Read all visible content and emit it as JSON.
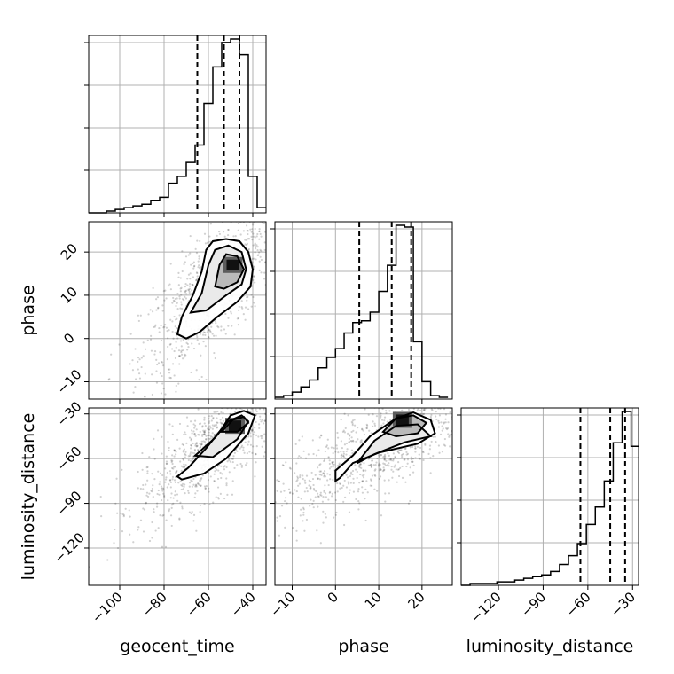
{
  "chart_data": {
    "type": "scatter",
    "kind": "corner-plot",
    "parameters": [
      "geocent_time",
      "phase",
      "luminosity_distance"
    ],
    "axis_labels": {
      "bottom": [
        "geocent_time",
        "phase",
        "luminosity_distance"
      ],
      "left": [
        "phase",
        "luminosity_distance"
      ]
    },
    "ranges": {
      "geocent_time": [
        -114,
        -34
      ],
      "phase": [
        -14,
        27
      ],
      "luminosity_distance": [
        -145,
        -26
      ]
    },
    "ticks": {
      "geocent_time": [
        -100,
        -80,
        -60,
        -40
      ],
      "phase": [
        -10,
        0,
        10,
        20
      ],
      "luminosity_distance": [
        -120,
        -90,
        -60,
        -30
      ]
    },
    "tick_labels": {
      "geocent_time": [
        "−100",
        "−80",
        "−60",
        "−40"
      ],
      "phase": [
        "−10",
        "0",
        "10",
        "20"
      ],
      "luminosity_distance": [
        "−120",
        "−90",
        "−60",
        "−30"
      ]
    },
    "quantiles": {
      "geocent_time": [
        -65,
        -53,
        -46
      ],
      "phase": [
        5.5,
        13,
        17.5
      ],
      "luminosity_distance": [
        -65,
        -45,
        -35
      ]
    },
    "histograms": {
      "geocent_time": {
        "bins": [
          -114,
          -110,
          -106,
          -102,
          -98,
          -94,
          -90,
          -86,
          -82,
          -78,
          -74,
          -70,
          -66,
          -62,
          -58,
          -54,
          -50,
          -46,
          -42,
          -38,
          -34
        ],
        "counts": [
          0,
          0,
          0.01,
          0.02,
          0.03,
          0.04,
          0.05,
          0.07,
          0.09,
          0.17,
          0.21,
          0.29,
          0.39,
          0.63,
          0.84,
          0.98,
          1.0,
          0.91,
          0.21,
          0.03
        ]
      },
      "phase": {
        "bins": [
          -14,
          -12,
          -10,
          -8,
          -6,
          -4,
          -2,
          0,
          2,
          4,
          6,
          8,
          10,
          12,
          14,
          16,
          18,
          20,
          22,
          24,
          26
        ],
        "counts": [
          0.01,
          0.02,
          0.04,
          0.07,
          0.11,
          0.18,
          0.24,
          0.29,
          0.38,
          0.44,
          0.45,
          0.5,
          0.62,
          0.77,
          1.0,
          0.99,
          0.33,
          0.1,
          0.02,
          0.01
        ]
      },
      "luminosity_distance": {
        "bins": [
          -145,
          -139,
          -133,
          -127,
          -121,
          -115,
          -109,
          -103,
          -97,
          -91,
          -85,
          -79,
          -73,
          -67,
          -61,
          -55,
          -49,
          -43,
          -37,
          -31,
          -26
        ],
        "counts": [
          0,
          0.01,
          0.01,
          0.01,
          0.02,
          0.02,
          0.03,
          0.04,
          0.05,
          0.06,
          0.08,
          0.12,
          0.17,
          0.24,
          0.35,
          0.45,
          0.6,
          0.82,
          1.0,
          0.8
        ]
      }
    },
    "pairs": [
      {
        "x": "geocent_time",
        "y": "phase",
        "mode": [
          -49,
          17
        ],
        "contours": [
          [
            [
              -74,
              1
            ],
            [
              -72,
              5
            ],
            [
              -67,
              10
            ],
            [
              -63,
              15.5
            ],
            [
              -61,
              20.5
            ],
            [
              -58,
              22.5
            ],
            [
              -52,
              23
            ],
            [
              -46,
              22.5
            ],
            [
              -42,
              20
            ],
            [
              -40,
              16
            ],
            [
              -41,
              12
            ],
            [
              -47,
              8.5
            ],
            [
              -56,
              5
            ],
            [
              -64,
              1.5
            ],
            [
              -70,
              0
            ],
            [
              -74,
              1
            ]
          ],
          [
            [
              -68,
              6
            ],
            [
              -63,
              10.5
            ],
            [
              -60,
              17
            ],
            [
              -57,
              20.5
            ],
            [
              -51,
              21.5
            ],
            [
              -45,
              20
            ],
            [
              -43,
              16
            ],
            [
              -45,
              12.5
            ],
            [
              -52,
              10
            ],
            [
              -61,
              6.5
            ],
            [
              -68,
              6
            ]
          ],
          [
            [
              -57,
              12
            ],
            [
              -55,
              17
            ],
            [
              -52,
              19.5
            ],
            [
              -47,
              19
            ],
            [
              -44,
              16
            ],
            [
              -47,
              13
            ],
            [
              -53,
              11.5
            ],
            [
              -57,
              12
            ]
          ]
        ]
      },
      {
        "x": "geocent_time",
        "y": "luminosity_distance",
        "mode": [
          -48,
          -38
        ],
        "contours": [
          [
            [
              -74,
              -72
            ],
            [
              -69,
              -66
            ],
            [
              -61,
              -53
            ],
            [
              -54,
              -40
            ],
            [
              -50,
              -31
            ],
            [
              -44,
              -28
            ],
            [
              -39,
              -31
            ],
            [
              -42,
              -43
            ],
            [
              -52,
              -60
            ],
            [
              -62,
              -70
            ],
            [
              -72,
              -74
            ],
            [
              -74,
              -72
            ]
          ],
          [
            [
              -66,
              -58
            ],
            [
              -57,
              -46
            ],
            [
              -51,
              -35
            ],
            [
              -45,
              -31
            ],
            [
              -42,
              -35
            ],
            [
              -47,
              -47
            ],
            [
              -58,
              -59
            ],
            [
              -66,
              -58
            ]
          ],
          [
            [
              -54,
              -42
            ],
            [
              -49,
              -34
            ],
            [
              -44,
              -32
            ],
            [
              -42,
              -36
            ],
            [
              -47,
              -42
            ],
            [
              -54,
              -42
            ]
          ]
        ]
      },
      {
        "x": "phase",
        "y": "luminosity_distance",
        "mode": [
          15.5,
          -34
        ],
        "contours": [
          [
            [
              0,
              -75
            ],
            [
              0,
              -68
            ],
            [
              4,
              -58
            ],
            [
              8,
              -45
            ],
            [
              14,
              -33
            ],
            [
              18,
              -29
            ],
            [
              22,
              -34
            ],
            [
              23,
              -43
            ],
            [
              19,
              -50
            ],
            [
              10,
              -56
            ],
            [
              4,
              -63
            ],
            [
              1,
              -73
            ],
            [
              0,
              -75
            ]
          ],
          [
            [
              5,
              -63
            ],
            [
              9,
              -48
            ],
            [
              14,
              -38
            ],
            [
              19,
              -37
            ],
            [
              22,
              -45
            ],
            [
              16,
              -49
            ],
            [
              9,
              -57
            ],
            [
              5,
              -63
            ]
          ],
          [
            [
              11,
              -42
            ],
            [
              14,
              -33
            ],
            [
              18,
              -31
            ],
            [
              21,
              -36
            ],
            [
              19,
              -43
            ],
            [
              14,
              -45
            ],
            [
              11,
              -42
            ]
          ]
        ]
      }
    ]
  }
}
